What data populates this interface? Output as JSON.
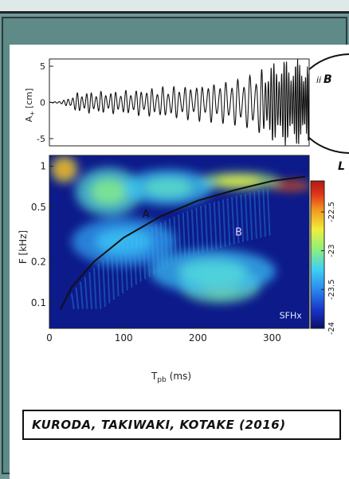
{
  "colors": {
    "page_background": "#6f9694",
    "panel_background": "#ffffff",
    "speech_bubble": "#ffffff",
    "colormap": [
      "#0c0f6b",
      "#1833c4",
      "#2a86f0",
      "#3fd0f5",
      "#8ff07a",
      "#f0ee3c",
      "#f29a1e",
      "#e0341a",
      "#b01a10"
    ]
  },
  "speech_bubble": {
    "visible_fragment": "ii",
    "cut_glyphs": [
      "B",
      "L"
    ]
  },
  "caption": {
    "text": "KURODA, TAKIWAKI, KOTAKE (2016)"
  },
  "chart_data": [
    {
      "type": "line",
      "title": "",
      "ylabel_main": "A",
      "ylabel_sub": "+",
      "ylabel_unit": "[cm]",
      "xlim": [
        0,
        360
      ],
      "ylim": [
        -6,
        6
      ],
      "yticks": [
        "5",
        "0",
        "-5"
      ],
      "ytick_values": [
        5,
        0,
        -5
      ],
      "grid": false,
      "series": [
        {
          "envelope": [
            {
              "x": 0,
              "a": 0.0
            },
            {
              "x": 20,
              "a": 0.3
            },
            {
              "x": 40,
              "a": 1.4
            },
            {
              "x": 60,
              "a": 1.5
            },
            {
              "x": 100,
              "a": 1.6
            },
            {
              "x": 140,
              "a": 2.0
            },
            {
              "x": 200,
              "a": 2.5
            },
            {
              "x": 240,
              "a": 3.0
            },
            {
              "x": 270,
              "a": 3.6
            },
            {
              "x": 300,
              "a": 5.0
            },
            {
              "x": 320,
              "a": 6.0
            },
            {
              "x": 360,
              "a": 6.0
            }
          ],
          "period_ms": [
            {
              "x": 0,
              "p": 6.0
            },
            {
              "x": 100,
              "p": 7.0
            },
            {
              "x": 200,
              "p": 8.0
            },
            {
              "x": 290,
              "p": 8.5
            },
            {
              "x": 300,
              "p": 4.0
            },
            {
              "x": 360,
              "p": 2.5
            }
          ]
        }
      ]
    },
    {
      "type": "heatmap",
      "title": "",
      "xlabel_main": "T",
      "xlabel_sub": "pb",
      "xlabel_unit": "(ms)",
      "ylabel": "F [kHz]",
      "xlim": [
        0,
        350
      ],
      "ylim": [
        0.065,
        1.2
      ],
      "yscale": "log",
      "xticks": [
        "0",
        "100",
        "200",
        "300"
      ],
      "xtick_values": [
        0,
        100,
        200,
        300
      ],
      "yticks": [
        "1",
        "0.5",
        "0.2",
        "0.1"
      ],
      "ytick_values": [
        1,
        0.5,
        0.2,
        0.1
      ],
      "colorbar": {
        "range": [
          -24,
          -22.1
        ],
        "ticks": [
          "-22.5",
          "-23",
          "-23.5",
          "-24"
        ],
        "tick_values": [
          -22.5,
          -23,
          -23.5,
          -24
        ]
      },
      "annotations": [
        {
          "text": "A",
          "x": 130,
          "y": 0.42
        },
        {
          "text": "B",
          "x": 255,
          "y": 0.31
        },
        {
          "text": "SFHx",
          "x": 325,
          "y": 0.077
        }
      ],
      "fit_curve": [
        {
          "x": 15,
          "y": 0.09
        },
        {
          "x": 30,
          "y": 0.13
        },
        {
          "x": 60,
          "y": 0.2
        },
        {
          "x": 100,
          "y": 0.3
        },
        {
          "x": 150,
          "y": 0.43
        },
        {
          "x": 200,
          "y": 0.56
        },
        {
          "x": 250,
          "y": 0.67
        },
        {
          "x": 300,
          "y": 0.78
        },
        {
          "x": 345,
          "y": 0.84
        }
      ],
      "features": [
        {
          "x": 230,
          "y": 0.135,
          "sx": 55,
          "sy": 0.36,
          "level": 0.52
        },
        {
          "x": 220,
          "y": 0.17,
          "sx": 85,
          "sy": 0.45,
          "level": 0.4
        },
        {
          "x": 325,
          "y": 0.72,
          "sx": 28,
          "sy": 0.09,
          "level": 0.95
        },
        {
          "x": 255,
          "y": 0.78,
          "sx": 55,
          "sy": 0.16,
          "level": 0.62
        },
        {
          "x": 20,
          "y": 0.95,
          "sx": 18,
          "sy": 0.25,
          "level": 0.75
        },
        {
          "x": 80,
          "y": 0.65,
          "sx": 45,
          "sy": 0.5,
          "level": 0.48
        },
        {
          "x": 160,
          "y": 0.7,
          "sx": 60,
          "sy": 0.35,
          "level": 0.42
        },
        {
          "x": 100,
          "y": 0.28,
          "sx": 70,
          "sy": 0.5,
          "level": 0.35
        }
      ]
    }
  ]
}
